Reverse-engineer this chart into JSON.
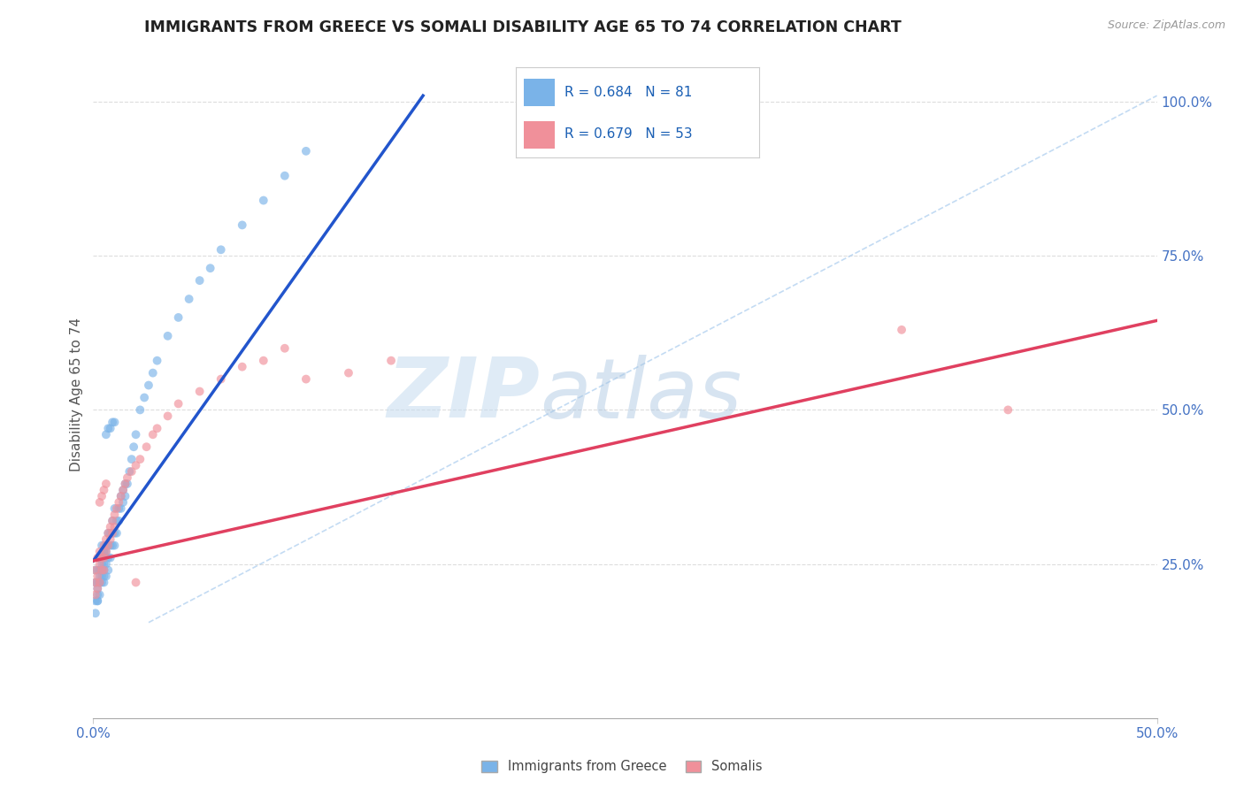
{
  "title": "IMMIGRANTS FROM GREECE VS SOMALI DISABILITY AGE 65 TO 74 CORRELATION CHART",
  "source": "Source: ZipAtlas.com",
  "ylabel": "Disability Age 65 to 74",
  "right_yticks": [
    "25.0%",
    "50.0%",
    "75.0%",
    "100.0%"
  ],
  "right_ytick_vals": [
    0.25,
    0.5,
    0.75,
    1.0
  ],
  "legend_label_greece": "R = 0.684   N = 81",
  "legend_label_somali": "R = 0.679   N = 53",
  "bottom_label_greece": "Immigrants from Greece",
  "bottom_label_somali": "Somalis",
  "greece_color": "#7ab3e8",
  "somali_color": "#f0909a",
  "greece_line_color": "#2255cc",
  "somali_line_color": "#e04060",
  "watermark_zip": "ZIP",
  "watermark_atlas": "atlas",
  "xmin": 0.0,
  "xmax": 0.5,
  "ymin": 0.0,
  "ymax": 1.05,
  "greece_R": 0.684,
  "greece_N": 81,
  "somali_R": 0.679,
  "somali_N": 53,
  "greece_line_x": [
    0.0,
    0.155
  ],
  "greece_line_y": [
    0.255,
    1.01
  ],
  "somali_line_x": [
    0.0,
    0.5
  ],
  "somali_line_y": [
    0.255,
    0.645
  ],
  "diag_line_x": [
    0.026,
    0.5
  ],
  "diag_line_y": [
    0.155,
    1.01
  ],
  "bg_color": "#ffffff",
  "grid_color": "#dddddd",
  "title_color": "#222222",
  "axis_label_color": "#4472c4",
  "greece_scatter_x": [
    0.001,
    0.001,
    0.001,
    0.001,
    0.002,
    0.002,
    0.002,
    0.002,
    0.002,
    0.002,
    0.003,
    0.003,
    0.003,
    0.003,
    0.003,
    0.003,
    0.003,
    0.004,
    0.004,
    0.004,
    0.004,
    0.004,
    0.004,
    0.005,
    0.005,
    0.005,
    0.005,
    0.005,
    0.005,
    0.006,
    0.006,
    0.006,
    0.006,
    0.007,
    0.007,
    0.007,
    0.007,
    0.008,
    0.008,
    0.008,
    0.009,
    0.009,
    0.009,
    0.01,
    0.01,
    0.01,
    0.011,
    0.011,
    0.012,
    0.012,
    0.013,
    0.013,
    0.014,
    0.014,
    0.015,
    0.015,
    0.016,
    0.017,
    0.018,
    0.019,
    0.02,
    0.022,
    0.024,
    0.026,
    0.028,
    0.03,
    0.035,
    0.04,
    0.045,
    0.05,
    0.055,
    0.06,
    0.07,
    0.08,
    0.09,
    0.1,
    0.006,
    0.007,
    0.008,
    0.009,
    0.01
  ],
  "greece_scatter_y": [
    0.24,
    0.22,
    0.19,
    0.17,
    0.22,
    0.2,
    0.19,
    0.24,
    0.21,
    0.19,
    0.22,
    0.2,
    0.26,
    0.24,
    0.22,
    0.26,
    0.23,
    0.25,
    0.23,
    0.28,
    0.26,
    0.22,
    0.24,
    0.27,
    0.25,
    0.23,
    0.27,
    0.24,
    0.22,
    0.27,
    0.25,
    0.23,
    0.28,
    0.26,
    0.24,
    0.28,
    0.3,
    0.28,
    0.26,
    0.3,
    0.28,
    0.32,
    0.3,
    0.3,
    0.28,
    0.34,
    0.3,
    0.32,
    0.32,
    0.34,
    0.34,
    0.36,
    0.35,
    0.37,
    0.36,
    0.38,
    0.38,
    0.4,
    0.42,
    0.44,
    0.46,
    0.5,
    0.52,
    0.54,
    0.56,
    0.58,
    0.62,
    0.65,
    0.68,
    0.71,
    0.73,
    0.76,
    0.8,
    0.84,
    0.88,
    0.92,
    0.46,
    0.47,
    0.47,
    0.48,
    0.48
  ],
  "somali_scatter_x": [
    0.001,
    0.001,
    0.001,
    0.002,
    0.002,
    0.002,
    0.003,
    0.003,
    0.003,
    0.004,
    0.004,
    0.005,
    0.005,
    0.005,
    0.006,
    0.006,
    0.007,
    0.007,
    0.008,
    0.008,
    0.009,
    0.009,
    0.01,
    0.01,
    0.011,
    0.012,
    0.013,
    0.014,
    0.015,
    0.016,
    0.018,
    0.02,
    0.022,
    0.025,
    0.028,
    0.03,
    0.035,
    0.04,
    0.05,
    0.06,
    0.07,
    0.08,
    0.09,
    0.1,
    0.12,
    0.14,
    0.003,
    0.004,
    0.005,
    0.006,
    0.38,
    0.43,
    0.02
  ],
  "somali_scatter_y": [
    0.24,
    0.22,
    0.2,
    0.26,
    0.23,
    0.21,
    0.27,
    0.25,
    0.22,
    0.26,
    0.24,
    0.28,
    0.26,
    0.24,
    0.29,
    0.27,
    0.3,
    0.28,
    0.31,
    0.29,
    0.32,
    0.3,
    0.33,
    0.31,
    0.34,
    0.35,
    0.36,
    0.37,
    0.38,
    0.39,
    0.4,
    0.41,
    0.42,
    0.44,
    0.46,
    0.47,
    0.49,
    0.51,
    0.53,
    0.55,
    0.57,
    0.58,
    0.6,
    0.55,
    0.56,
    0.58,
    0.35,
    0.36,
    0.37,
    0.38,
    0.63,
    0.5,
    0.22
  ]
}
